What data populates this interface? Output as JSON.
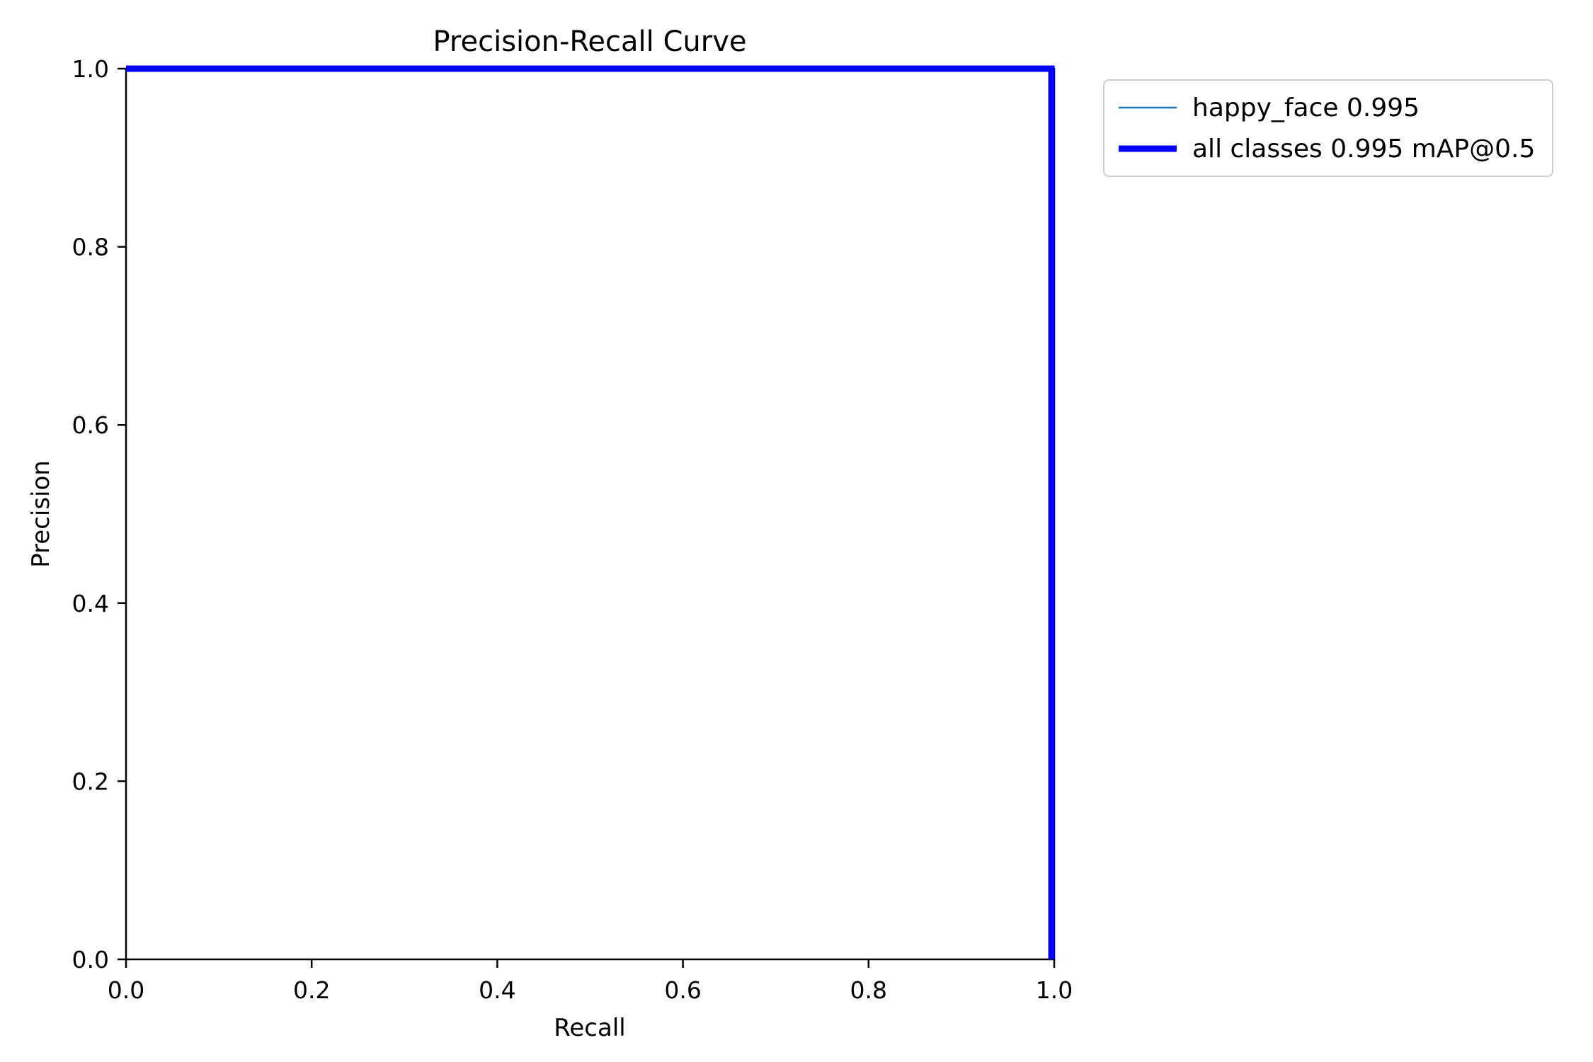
{
  "chart_data": {
    "type": "line",
    "title": "Precision-Recall Curve",
    "xlabel": "Recall",
    "ylabel": "Precision",
    "xlim": [
      0.0,
      1.0
    ],
    "ylim": [
      0.0,
      1.0
    ],
    "xticks": [
      "0.0",
      "0.2",
      "0.4",
      "0.6",
      "0.8",
      "1.0"
    ],
    "yticks": [
      "0.0",
      "0.2",
      "0.4",
      "0.6",
      "0.8",
      "1.0"
    ],
    "grid": false,
    "legend_position": "outside-upper-right",
    "series": [
      {
        "name": "happy_face 0.995",
        "color": "#1f77b4",
        "linewidth": 2.5,
        "points": [
          [
            0.0,
            1.0
          ],
          [
            0.997,
            1.0
          ],
          [
            0.997,
            0.0
          ]
        ]
      },
      {
        "name": "all classes 0.995 mAP@0.5",
        "color": "#0000ff",
        "linewidth": 9,
        "points": [
          [
            0.0,
            1.0
          ],
          [
            0.997,
            1.0
          ],
          [
            0.997,
            0.0
          ]
        ]
      }
    ]
  }
}
